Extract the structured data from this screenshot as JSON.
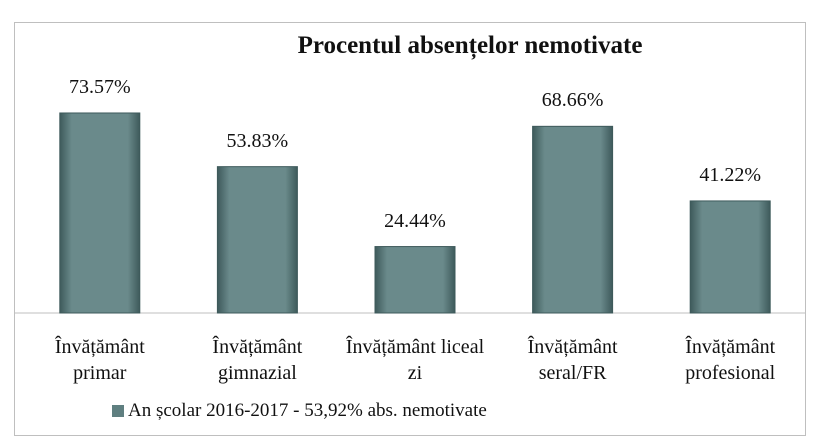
{
  "chart_data": {
    "type": "bar",
    "title": "Procentul absențelor nemotivate",
    "categories": [
      "Învățământ primar",
      "Învățământ gimnazial",
      "Învățământ liceal zi",
      "Învățământ seral/FR",
      "Învățământ profesional"
    ],
    "series": [
      {
        "name": "An școlar 2016-2017 - 53,92% abs. nemotivate",
        "color": "#5f7f80",
        "values": [
          73.57,
          53.83,
          24.44,
          68.66,
          41.22
        ],
        "value_labels": [
          "73.57%",
          "53.83%",
          "24.44%",
          "68.66%",
          "41.22%"
        ]
      }
    ],
    "ylim": [
      0,
      80
    ],
    "legend": "bottom"
  }
}
